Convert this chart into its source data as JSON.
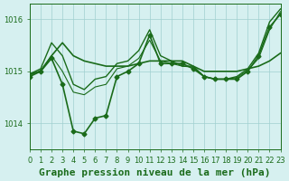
{
  "background_color": "#d6f0f0",
  "grid_color": "#a0d0d0",
  "line_color": "#1a6b1a",
  "title": "Graphe pression niveau de la mer (hPa)",
  "xlim": [
    0,
    23
  ],
  "ylim": [
    1013.5,
    1016.3
  ],
  "yticks": [
    1014,
    1015,
    1016
  ],
  "xticks": [
    0,
    1,
    2,
    3,
    4,
    5,
    6,
    7,
    8,
    9,
    10,
    11,
    12,
    13,
    14,
    15,
    16,
    17,
    18,
    19,
    20,
    21,
    22,
    23
  ],
  "series": [
    {
      "x": [
        0,
        1,
        2,
        3,
        4,
        5,
        6,
        7,
        8,
        9,
        10,
        11,
        12,
        13,
        14,
        15,
        16,
        17,
        18,
        19,
        20,
        21,
        22,
        23
      ],
      "y": [
        1014.9,
        1015.0,
        1015.25,
        1014.75,
        1013.85,
        1013.8,
        1014.1,
        1014.15,
        1014.9,
        1015.0,
        1015.15,
        1015.7,
        1015.15,
        1015.15,
        1015.15,
        1015.05,
        1014.9,
        1014.85,
        1014.85,
        1014.85,
        1015.0,
        1015.3,
        1015.85,
        1016.1
      ],
      "marker": "D",
      "markersize": 2.5,
      "linewidth": 1.2
    },
    {
      "x": [
        0,
        1,
        2,
        3,
        4,
        5,
        6,
        7,
        8,
        9,
        10,
        11,
        12,
        13,
        14,
        15,
        16,
        17,
        18,
        19,
        20,
        21,
        22,
        23
      ],
      "y": [
        1014.95,
        1015.0,
        1015.3,
        1015.55,
        1015.3,
        1015.2,
        1015.15,
        1015.1,
        1015.1,
        1015.1,
        1015.15,
        1015.2,
        1015.2,
        1015.2,
        1015.2,
        1015.1,
        1015.0,
        1015.0,
        1015.0,
        1015.0,
        1015.05,
        1015.1,
        1015.2,
        1015.35
      ],
      "marker": null,
      "markersize": 0,
      "linewidth": 1.2
    },
    {
      "x": [
        0,
        1,
        2,
        3,
        4,
        5,
        6,
        7,
        8,
        9,
        10,
        11,
        12,
        13,
        14,
        15,
        16,
        17,
        18,
        19,
        20,
        21,
        22,
        23
      ],
      "y": [
        1014.95,
        1015.05,
        1015.55,
        1015.3,
        1014.75,
        1014.65,
        1014.85,
        1014.9,
        1015.15,
        1015.2,
        1015.4,
        1015.8,
        1015.3,
        1015.2,
        1015.1,
        1015.1,
        1014.9,
        1014.85,
        1014.85,
        1014.9,
        1015.05,
        1015.35,
        1015.95,
        1016.2
      ],
      "marker": null,
      "markersize": 0,
      "linewidth": 1.0
    },
    {
      "x": [
        0,
        1,
        2,
        3,
        4,
        5,
        6,
        7,
        8,
        9,
        10,
        11,
        12,
        13,
        14,
        15,
        16,
        17,
        18,
        19,
        20,
        21,
        22,
        23
      ],
      "y": [
        1014.92,
        1015.02,
        1015.3,
        1015.0,
        1014.6,
        1014.55,
        1014.7,
        1014.75,
        1015.05,
        1015.1,
        1015.25,
        1015.6,
        1015.2,
        1015.15,
        1015.1,
        1015.08,
        1014.9,
        1014.85,
        1014.85,
        1014.88,
        1015.02,
        1015.25,
        1015.8,
        1016.15
      ],
      "marker": null,
      "markersize": 0,
      "linewidth": 0.8
    }
  ],
  "title_fontsize": 8,
  "tick_fontsize": 6,
  "title_color": "#1a6b1a",
  "tick_color": "#1a6b1a"
}
